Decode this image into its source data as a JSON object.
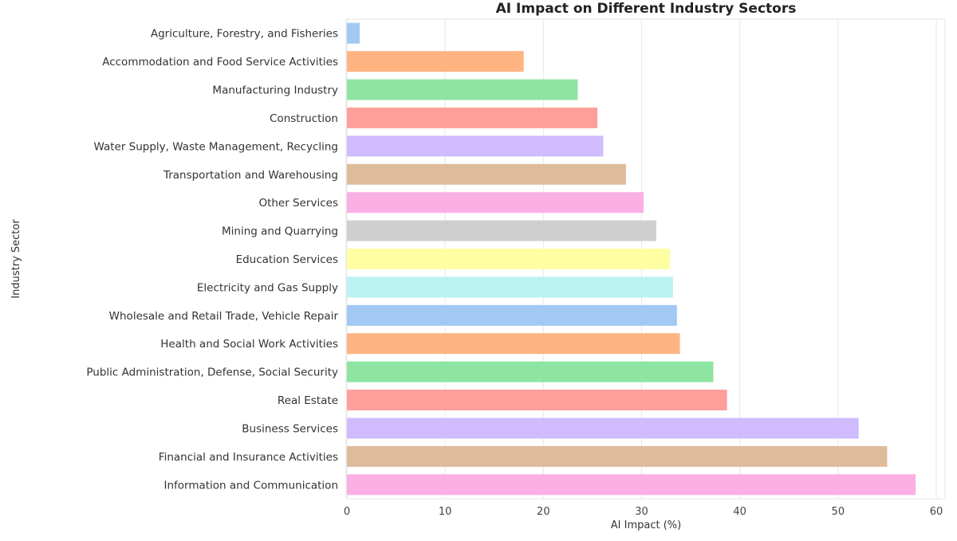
{
  "chart_data": {
    "type": "bar",
    "orientation": "horizontal",
    "title": "AI Impact on Different Industry Sectors",
    "xlabel": "AI Impact (%)",
    "ylabel": "Industry Sector",
    "xlim": [
      0,
      61
    ],
    "xticks": [
      0,
      10,
      20,
      30,
      40,
      50,
      60
    ],
    "grid": true,
    "categories": [
      "Agriculture, Forestry, and Fisheries",
      "Accommodation and Food Service Activities",
      "Manufacturing Industry",
      "Construction",
      "Water Supply, Waste Management, Recycling",
      "Transportation and Warehousing",
      "Other Services",
      "Mining and Quarrying",
      "Education Services",
      "Electricity and Gas Supply",
      "Wholesale and Retail Trade, Vehicle Repair",
      "Health and Social Work Activities",
      "Public Administration, Defense, Social Security",
      "Real Estate",
      "Business Services",
      "Financial and Insurance Activities",
      "Information and Communication"
    ],
    "values": [
      1.3,
      18.0,
      23.5,
      25.5,
      26.1,
      28.4,
      30.2,
      31.5,
      32.9,
      33.2,
      33.6,
      33.9,
      37.3,
      38.7,
      52.1,
      55.0,
      57.9
    ],
    "colors": [
      "#a1c9f4",
      "#ffb482",
      "#8de5a1",
      "#ff9f9b",
      "#d0bbff",
      "#debb9b",
      "#fab0e4",
      "#cfcfcf",
      "#fffea3",
      "#b9f2f0"
    ]
  }
}
